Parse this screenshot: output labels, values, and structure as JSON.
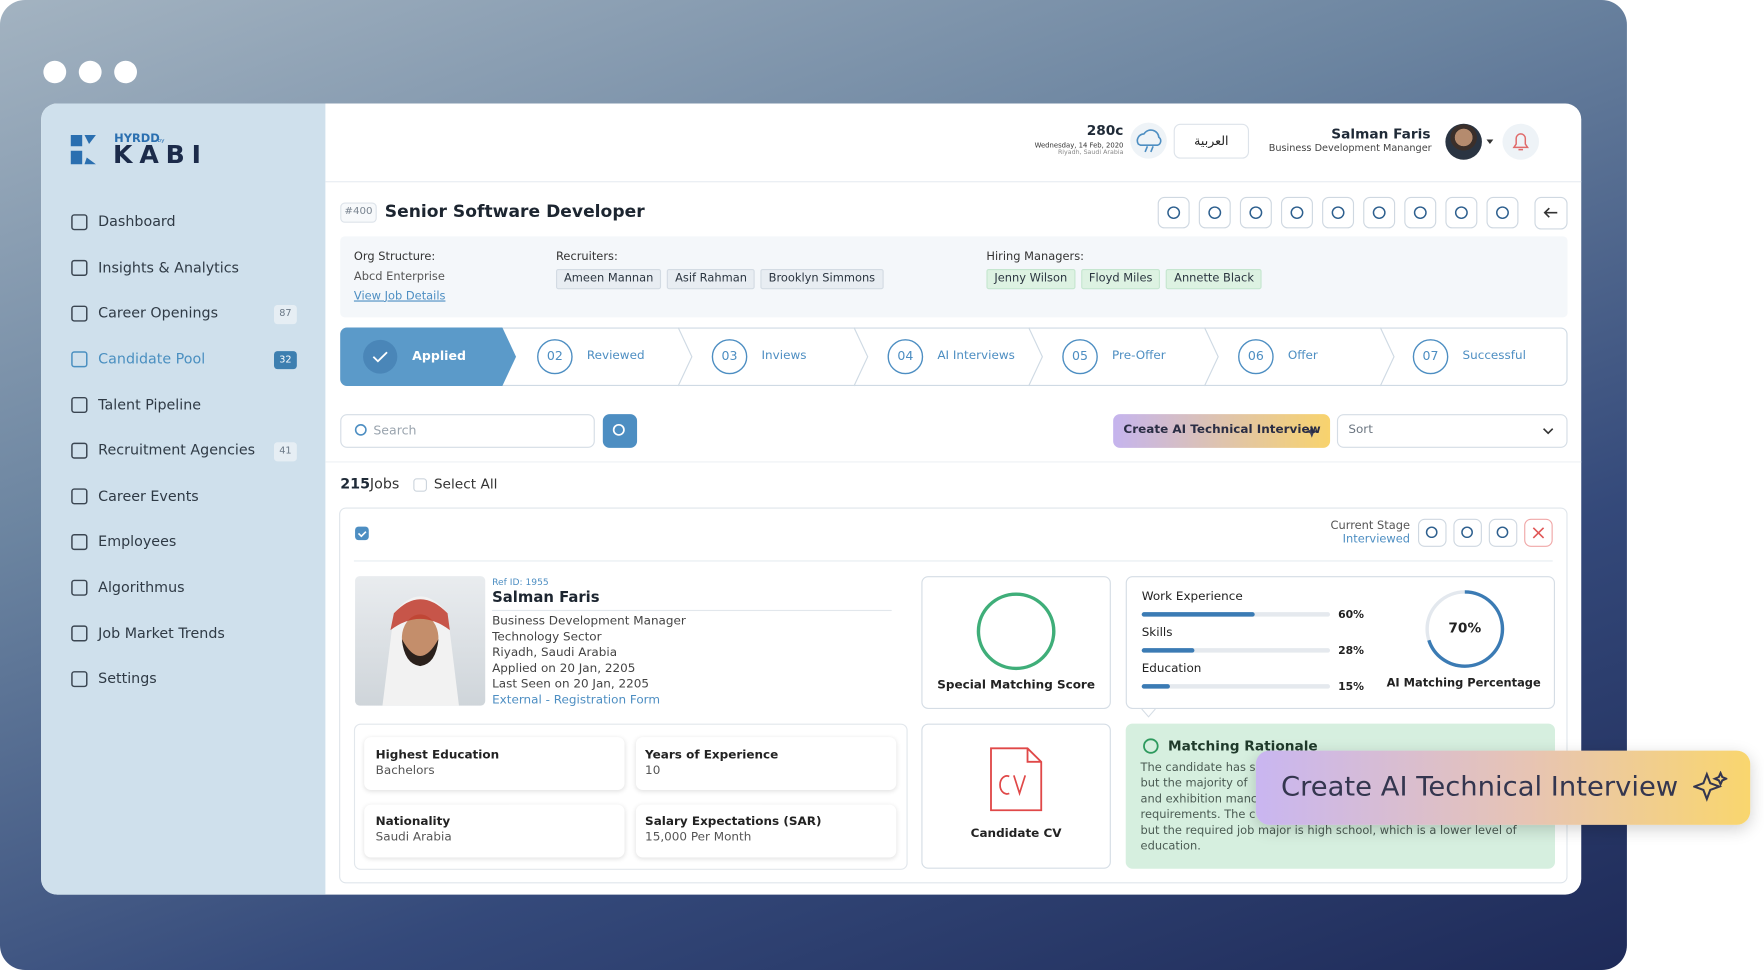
{
  "logo": {
    "brand": "HYRDD",
    "by": "by",
    "name": "KABI"
  },
  "nav": [
    {
      "label": "Dashboard"
    },
    {
      "label": "Insights & Analytics"
    },
    {
      "label": "Career Openings",
      "badge": 87
    },
    {
      "label": "Candidate Pool",
      "badge": 32,
      "active": true
    },
    {
      "label": "Talent Pipeline"
    },
    {
      "label": "Recruitment Agencies",
      "badge": 41
    },
    {
      "label": "Career Events"
    },
    {
      "label": "Employees"
    },
    {
      "label": "Algorithmus"
    },
    {
      "label": "Job Market Trends"
    },
    {
      "label": "Settings"
    }
  ],
  "header": {
    "temperature": "280c",
    "date": "Wednesday, 14 Feb, 2020",
    "location": "Riyadh, Saudi Arabia",
    "language": "العربية",
    "user_name": "Salman Faris",
    "user_role": "Business Development Mananger"
  },
  "job": {
    "id": "#400",
    "title": "Senior Software Developer",
    "org_label": "Org Structure:",
    "org": "Abcd Enterprise",
    "details_link": "View Job Details",
    "recruiters_label": "Recruiters:",
    "recruiters": [
      "Ameen Mannan",
      "Asif Rahman",
      "Brooklyn Simmons"
    ],
    "managers_label": "Hiring Managers:",
    "managers": [
      "Jenny Wilson",
      "Floyd Miles",
      "Annette Black"
    ]
  },
  "stages": [
    {
      "label": "Applied",
      "done": true
    },
    {
      "number": "02",
      "label": "Reviewed"
    },
    {
      "number": "03",
      "label": "Inviews"
    },
    {
      "number": "04",
      "label": "AI Interviews"
    },
    {
      "number": "05",
      "label": "Pre-Offer"
    },
    {
      "number": "06",
      "label": "Offer"
    },
    {
      "number": "07",
      "label": "Successful"
    }
  ],
  "toolbar": {
    "search": "Search",
    "create_button": "Create AI Technical Interview",
    "sort": "Sort"
  },
  "results": {
    "count": 215,
    "unit": "Jobs",
    "select_all": "Select All"
  },
  "candidate": {
    "stage_label": "Current Stage",
    "stage": "Interviewed",
    "ref": "Ref ID: 1955",
    "name": "Salman Faris",
    "details": [
      "Business Development Manager",
      "Technology Sector",
      "Riyadh, Saudi Arabia",
      "Applied on 20 Jan, 2205",
      "Last Seen on 20 Jan, 2205"
    ],
    "source": "External - Registration Form",
    "facts": [
      {
        "label": "Highest Education",
        "value": "Bachelors"
      },
      {
        "label": "Years of Experience",
        "value": "10"
      },
      {
        "label": "Nationality",
        "value": "Saudi Arabia"
      },
      {
        "label": "Salary Expectations (SAR)",
        "value": "15,000 Per Month"
      }
    ],
    "special_score_label": "Special Matching Score",
    "scores": [
      {
        "label": "Work Experience",
        "value": 60,
        "value_label": "60%"
      },
      {
        "label": "Skills",
        "value": 28,
        "value_label": "28%"
      },
      {
        "label": "Education",
        "value": 15,
        "value_label": "15%"
      }
    ],
    "ai_match": {
      "value": 70,
      "value_label": "70%",
      "label": "AI Matching Percentage"
    },
    "cv_label": "Candidate CV",
    "rationale_title": "Matching Rationale",
    "rationale_lines": [
      "The candidate has s",
      "but the majority of",
      "and exhibition manc",
      "requirements. The c",
      "but the required job major is high school, which is a lower level of",
      "education."
    ]
  },
  "callout": "Create AI Technical Interview"
}
